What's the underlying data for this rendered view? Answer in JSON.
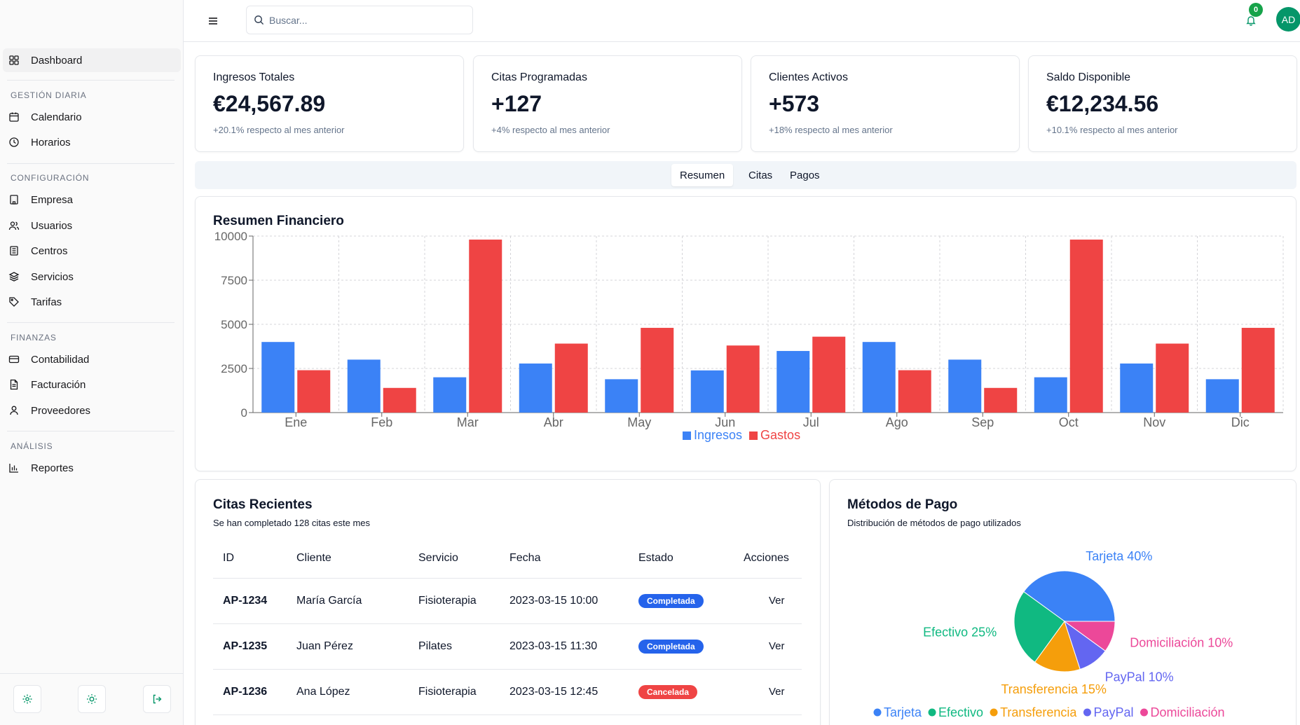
{
  "sidebar": {
    "dashboard": "Dashboard",
    "sections": [
      {
        "title": "GESTIÓN DIARIA",
        "items": [
          "Calendario",
          "Horarios"
        ]
      },
      {
        "title": "CONFIGURACIÓN",
        "items": [
          "Empresa",
          "Usuarios",
          "Centros",
          "Servicios",
          "Tarifas"
        ]
      },
      {
        "title": "FINANZAS",
        "items": [
          "Contabilidad",
          "Facturación",
          "Proveedores"
        ]
      },
      {
        "title": "ANÁLISIS",
        "items": [
          "Reportes"
        ]
      }
    ]
  },
  "header": {
    "search_placeholder": "Buscar...",
    "notifications_count": "0",
    "avatar_initials": "AD"
  },
  "stats": [
    {
      "title": "Ingresos Totales",
      "value": "€24,567.89",
      "sub": "+20.1% respecto al mes anterior"
    },
    {
      "title": "Citas Programadas",
      "value": "+127",
      "sub": "+4% respecto al mes anterior"
    },
    {
      "title": "Clientes Activos",
      "value": "+573",
      "sub": "+18% respecto al mes anterior"
    },
    {
      "title": "Saldo Disponible",
      "value": "€12,234.56",
      "sub": "+10.1% respecto al mes anterior"
    }
  ],
  "tabs": [
    "Resumen",
    "Citas",
    "Pagos"
  ],
  "financial": {
    "title": "Resumen Financiero"
  },
  "colors": {
    "income": "#3b82f6",
    "expense": "#ef4444",
    "completed": "#2563eb",
    "cancelled": "#ef4444"
  },
  "chart_data": [
    {
      "type": "bar",
      "title": "Resumen Financiero",
      "categories": [
        "Ene",
        "Feb",
        "Mar",
        "Abr",
        "May",
        "Jun",
        "Jul",
        "Ago",
        "Sep",
        "Oct",
        "Nov",
        "Dic"
      ],
      "series": [
        {
          "name": "Ingresos",
          "color": "#3b82f6",
          "values": [
            4000,
            3000,
            2000,
            2780,
            1890,
            2390,
            3490,
            4000,
            3000,
            2000,
            2780,
            1890
          ]
        },
        {
          "name": "Gastos",
          "color": "#ef4444",
          "values": [
            2400,
            1398,
            9800,
            3908,
            4800,
            3800,
            4300,
            2400,
            1398,
            9800,
            3908,
            4800
          ]
        }
      ],
      "yticks": [
        "0",
        "2500",
        "5000",
        "7500",
        "10000"
      ],
      "ylim": [
        0,
        10000
      ],
      "grid": true,
      "legend": "bottom"
    },
    {
      "type": "pie",
      "title": "Métodos de Pago",
      "subtitle": "Distribución de métodos de pago utilizados",
      "categories": [
        "Tarjeta",
        "Efectivo",
        "Transferencia",
        "PayPal",
        "Domiciliación"
      ],
      "values": [
        40,
        25,
        15,
        10,
        10
      ],
      "colors": [
        "#3b82f6",
        "#10b981",
        "#f59e0b",
        "#6366f1",
        "#ec4899"
      ],
      "labels": [
        "Tarjeta 40%",
        "Efectivo 25%",
        "Transferencia 15%",
        "PayPal 10%",
        "Domiciliación 10%"
      ],
      "legend": "bottom"
    }
  ],
  "appointments": {
    "title": "Citas Recientes",
    "subtitle": "Se han completado 128 citas este mes",
    "headers": [
      "ID",
      "Cliente",
      "Servicio",
      "Fecha",
      "Estado",
      "Acciones"
    ],
    "rows": [
      {
        "id": "AP-1234",
        "client": "María García",
        "service": "Fisioterapia",
        "date": "2023-03-15 10:00",
        "status": "Completada",
        "status_color": "#2563eb",
        "action": "Ver"
      },
      {
        "id": "AP-1235",
        "client": "Juan Pérez",
        "service": "Pilates",
        "date": "2023-03-15 11:30",
        "status": "Completada",
        "status_color": "#2563eb",
        "action": "Ver"
      },
      {
        "id": "AP-1236",
        "client": "Ana López",
        "service": "Fisioterapia",
        "date": "2023-03-15 12:45",
        "status": "Cancelada",
        "status_color": "#ef4444",
        "action": "Ver"
      }
    ]
  }
}
